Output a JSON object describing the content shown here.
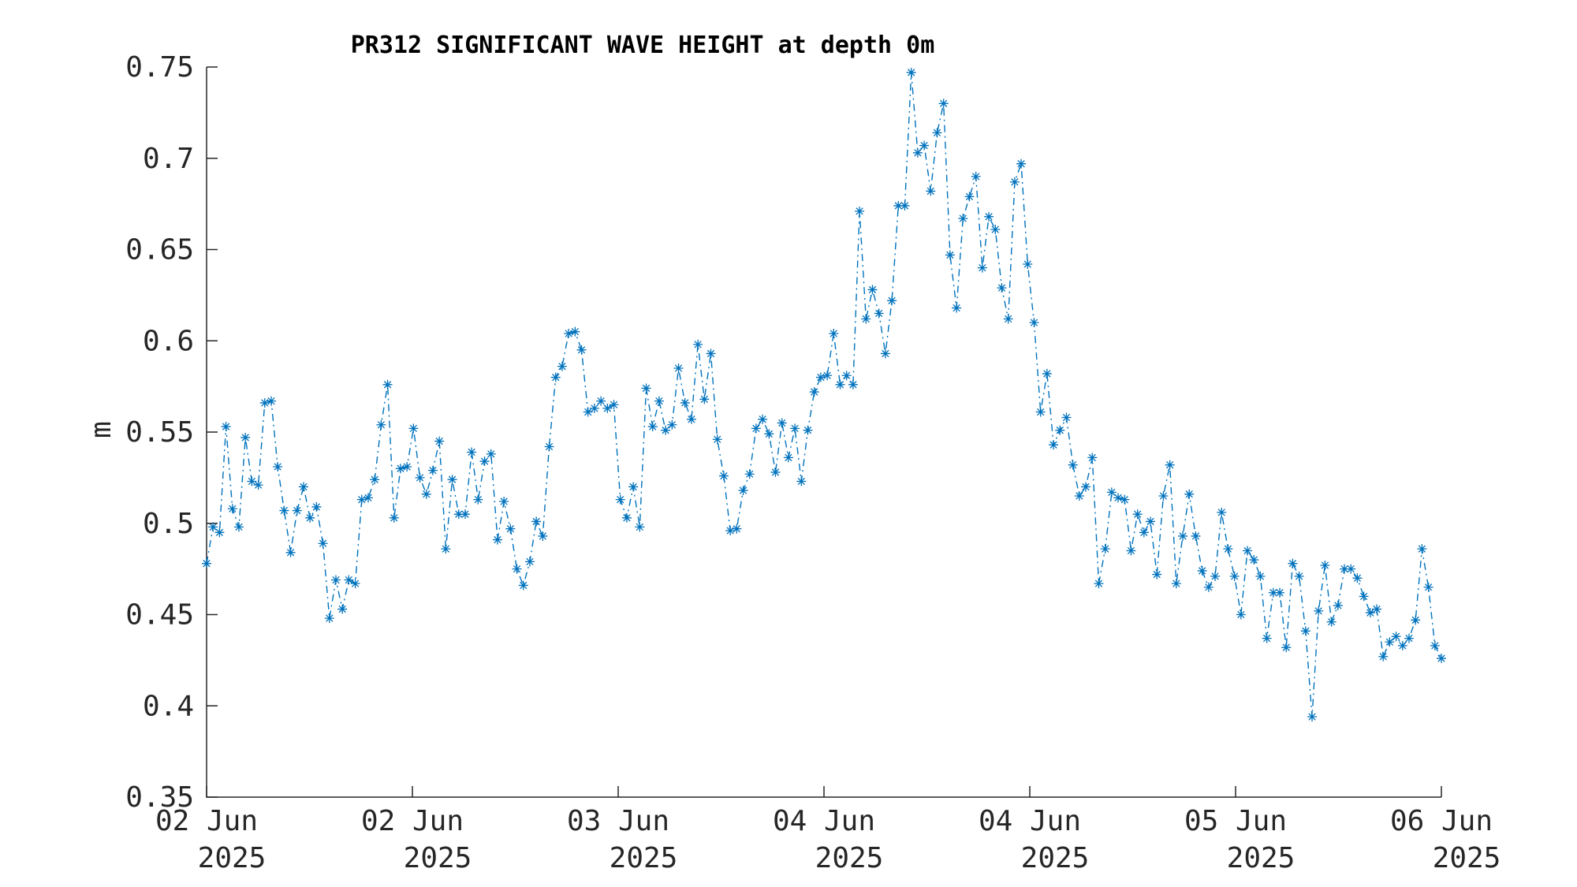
{
  "chart_data": {
    "type": "line",
    "title": "PR312 SIGNIFICANT WAVE HEIGHT at depth 0m",
    "xlabel": "",
    "ylabel": "m",
    "ylim": [
      0.35,
      0.75
    ],
    "yticks": [
      "0.35",
      "0.4",
      "0.45",
      "0.5",
      "0.55",
      "0.6",
      "0.65",
      "0.7",
      "0.75"
    ],
    "xlim": [
      "2025-06-01T23:00",
      "2025-06-06T23:00"
    ],
    "xticks": [
      {
        "line1": "02 Jun",
        "line2": "2025"
      },
      {
        "line1": "02 Jun",
        "line2": "2025"
      },
      {
        "line1": "03 Jun",
        "line2": "2025"
      },
      {
        "line1": "04 Jun",
        "line2": "2025"
      },
      {
        "line1": "04 Jun",
        "line2": "2025"
      },
      {
        "line1": "05 Jun",
        "line2": "2025"
      },
      {
        "line1": "06 Jun",
        "line2": "2025"
      }
    ],
    "line_style": "dash-dot",
    "marker": "asterisk",
    "color": "#0072BD",
    "grid": false,
    "series": [
      {
        "values": [
          0.478,
          0.498,
          0.495,
          0.553,
          0.508,
          0.498,
          0.547,
          0.523,
          0.521,
          0.566,
          0.567,
          0.531,
          0.507,
          0.484,
          0.507,
          0.52,
          0.503,
          0.509,
          0.489,
          0.448,
          0.469,
          0.453,
          0.469,
          0.467,
          0.513,
          0.514,
          0.524,
          0.554,
          0.576,
          0.503,
          0.53,
          0.531,
          0.552,
          0.525,
          0.516,
          0.529,
          0.545,
          0.486,
          0.524,
          0.505,
          0.505,
          0.539,
          0.513,
          0.534,
          0.538,
          0.491,
          0.512,
          0.497,
          0.475,
          0.466,
          0.479,
          0.501,
          0.493,
          0.542,
          0.58,
          0.586,
          0.604,
          0.605,
          0.595,
          0.561,
          0.563,
          0.567,
          0.563,
          0.565,
          0.513,
          0.503,
          0.52,
          0.498,
          0.574,
          0.553,
          0.567,
          0.551,
          0.554,
          0.585,
          0.566,
          0.557,
          0.598,
          0.568,
          0.593,
          0.546,
          0.526,
          0.496,
          0.497,
          0.518,
          0.527,
          0.552,
          0.557,
          0.549,
          0.528,
          0.555,
          0.536,
          0.552,
          0.523,
          0.551,
          0.572,
          0.58,
          0.581,
          0.604,
          0.576,
          0.581,
          0.576,
          0.671,
          0.612,
          0.628,
          0.615,
          0.593,
          0.622,
          0.674,
          0.674,
          0.747,
          0.703,
          0.707,
          0.682,
          0.714,
          0.73,
          0.647,
          0.618,
          0.667,
          0.679,
          0.69,
          0.64,
          0.668,
          0.661,
          0.629,
          0.612,
          0.687,
          0.697,
          0.642,
          0.61,
          0.561,
          0.582,
          0.543,
          0.551,
          0.558,
          0.532,
          0.515,
          0.52,
          0.536,
          0.467,
          0.486,
          0.517,
          0.514,
          0.513,
          0.485,
          0.505,
          0.495,
          0.501,
          0.472,
          0.515,
          0.532,
          0.467,
          0.493,
          0.516,
          0.493,
          0.474,
          0.465,
          0.471,
          0.506,
          0.486,
          0.471,
          0.45,
          0.485,
          0.48,
          0.471,
          0.437,
          0.462,
          0.462,
          0.432,
          0.478,
          0.471,
          0.441,
          0.394,
          0.452,
          0.477,
          0.446,
          0.455,
          0.475,
          0.475,
          0.47,
          0.46,
          0.451,
          0.453,
          0.427,
          0.435,
          0.438,
          0.433,
          0.437,
          0.447,
          0.486,
          0.465,
          0.433,
          0.426
        ]
      }
    ]
  }
}
